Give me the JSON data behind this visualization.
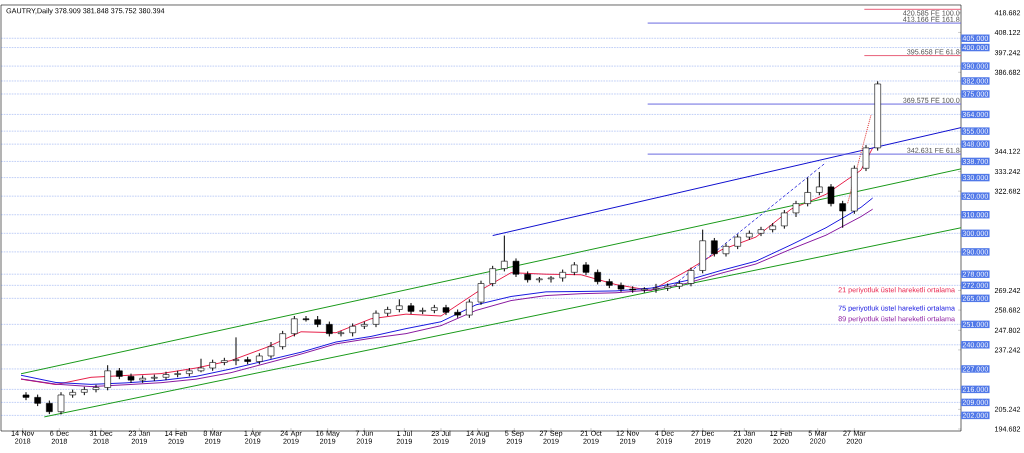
{
  "chart_data": {
    "type": "candlestick",
    "title": "GAUTRY,Daily 378.909 381.848 375.752 380.394",
    "x": [
      "2018-11-16",
      "2018-11-23",
      "2018-11-30",
      "2018-12-07",
      "2018-12-14",
      "2018-12-21",
      "2018-12-28",
      "2019-01-04",
      "2019-01-11",
      "2019-01-18",
      "2019-01-25",
      "2019-02-01",
      "2019-02-08",
      "2019-02-15",
      "2019-02-22",
      "2019-03-01",
      "2019-03-08",
      "2019-03-15",
      "2019-03-22",
      "2019-03-29",
      "2019-04-05",
      "2019-04-12",
      "2019-04-19",
      "2019-04-26",
      "2019-05-03",
      "2019-05-10",
      "2019-05-17",
      "2019-05-24",
      "2019-05-31",
      "2019-06-07",
      "2019-06-14",
      "2019-06-21",
      "2019-06-28",
      "2019-07-05",
      "2019-07-12",
      "2019-07-19",
      "2019-07-26",
      "2019-08-02",
      "2019-08-09",
      "2019-08-16",
      "2019-08-23",
      "2019-08-30",
      "2019-09-06",
      "2019-09-13",
      "2019-09-20",
      "2019-09-27",
      "2019-10-04",
      "2019-10-11",
      "2019-10-18",
      "2019-10-25",
      "2019-11-01",
      "2019-11-08",
      "2019-11-15",
      "2019-11-22",
      "2019-11-29",
      "2019-12-06",
      "2019-12-13",
      "2019-12-20",
      "2019-12-27",
      "2020-01-03",
      "2020-01-10",
      "2020-01-17",
      "2020-01-24",
      "2020-01-31",
      "2020-02-07",
      "2020-02-14",
      "2020-02-21",
      "2020-02-28",
      "2020-03-06",
      "2020-03-13",
      "2020-03-20",
      "2020-03-27",
      "2020-04-03",
      "2020-04-10"
    ],
    "ohlc": [
      [
        213,
        214.5,
        210.2,
        211.7
      ],
      [
        211.7,
        213.2,
        207,
        208.5
      ],
      [
        208.5,
        210,
        202.7,
        204
      ],
      [
        204,
        214.5,
        202.5,
        213
      ],
      [
        213,
        215.9,
        211.5,
        214.4
      ],
      [
        214.4,
        217.4,
        212.9,
        215.9
      ],
      [
        215.9,
        218.5,
        214.4,
        217
      ],
      [
        217,
        229,
        215.5,
        226
      ],
      [
        226,
        227.5,
        221.5,
        223
      ],
      [
        223,
        224.5,
        219.5,
        221
      ],
      [
        221,
        223.5,
        219.5,
        222
      ],
      [
        222,
        224,
        220.5,
        222.5
      ],
      [
        222.5,
        225.5,
        221,
        224
      ],
      [
        224,
        226,
        222.5,
        224.5
      ],
      [
        224.5,
        227.5,
        223,
        226
      ],
      [
        226,
        232.5,
        225.2,
        227.5
      ],
      [
        227.5,
        232,
        226,
        230.5
      ],
      [
        230.5,
        233,
        229,
        231.5
      ],
      [
        231.5,
        244,
        229,
        232
      ],
      [
        232,
        233.5,
        229.5,
        231
      ],
      [
        231,
        235.5,
        229.5,
        234
      ],
      [
        234,
        241.5,
        232.5,
        239
      ],
      [
        239,
        247.5,
        237.5,
        246
      ],
      [
        246,
        255.5,
        244.5,
        254
      ],
      [
        254,
        255.5,
        252.5,
        253.5
      ],
      [
        253.5,
        255.5,
        249.5,
        251
      ],
      [
        251,
        252.5,
        244.5,
        246
      ],
      [
        246,
        247.5,
        244.5,
        246.5
      ],
      [
        246.5,
        251.5,
        244.5,
        250
      ],
      [
        250,
        252.5,
        248.5,
        251
      ],
      [
        251,
        258.5,
        249.5,
        257
      ],
      [
        257,
        260.5,
        255.5,
        259
      ],
      [
        259,
        264.5,
        257.5,
        261
      ],
      [
        261,
        262.5,
        256.5,
        258
      ],
      [
        258,
        260,
        256.5,
        258.5
      ],
      [
        258.5,
        261.5,
        257,
        260
      ],
      [
        260,
        261.5,
        256,
        257.5
      ],
      [
        257.5,
        259,
        254.5,
        256
      ],
      [
        256,
        264.5,
        254.5,
        263
      ],
      [
        263,
        274.5,
        261.5,
        273
      ],
      [
        273,
        282.5,
        271.5,
        281
      ],
      [
        281,
        298.8,
        279.5,
        285
      ],
      [
        285,
        286.5,
        276.5,
        278
      ],
      [
        278,
        279.5,
        273.5,
        275
      ],
      [
        275,
        276.5,
        273.5,
        275.5
      ],
      [
        275.5,
        277,
        273.5,
        276
      ],
      [
        276,
        280.5,
        274,
        279
      ],
      [
        279,
        284.5,
        277.5,
        283
      ],
      [
        283,
        284.5,
        277.5,
        279
      ],
      [
        279,
        280.5,
        272.5,
        274
      ],
      [
        274,
        275.5,
        270.5,
        272
      ],
      [
        272,
        273.5,
        268.5,
        270
      ],
      [
        270,
        271.5,
        268,
        269.5
      ],
      [
        269.5,
        271,
        268,
        270
      ],
      [
        270,
        272.8,
        268,
        270.5
      ],
      [
        270.5,
        273,
        269,
        271.5
      ],
      [
        271.5,
        274.5,
        270,
        273
      ],
      [
        273,
        281.5,
        271.5,
        280
      ],
      [
        280,
        302,
        278.5,
        296
      ],
      [
        296,
        297.5,
        287.5,
        289
      ],
      [
        289,
        294.5,
        287.5,
        293
      ],
      [
        293,
        299.5,
        291.5,
        298
      ],
      [
        298,
        301.5,
        296.5,
        300
      ],
      [
        300,
        303.5,
        298.5,
        302
      ],
      [
        302,
        305.5,
        300.5,
        304
      ],
      [
        304,
        312.5,
        302.5,
        311
      ],
      [
        311,
        317.5,
        308.8,
        316
      ],
      [
        316,
        330,
        314.5,
        322
      ],
      [
        322,
        333,
        320.5,
        325
      ],
      [
        325,
        326.5,
        314.5,
        316
      ],
      [
        316,
        317.5,
        303,
        312
      ],
      [
        312,
        336.5,
        310.5,
        335
      ],
      [
        335,
        347.5,
        333.5,
        346
      ],
      [
        346,
        381.848,
        344.5,
        380.394
      ]
    ],
    "series": [
      {
        "type": "line",
        "name": "21 periyotluk üstel hareketli ortalama",
        "color": "#e8204a",
        "x": [
          "2018-11-13",
          "2018-12-04",
          "2018-12-25",
          "2019-01-15",
          "2019-02-05",
          "2019-02-26",
          "2019-03-19",
          "2019-04-09",
          "2019-04-30",
          "2019-05-21",
          "2019-06-11",
          "2019-07-02",
          "2019-07-23",
          "2019-08-13",
          "2019-09-03",
          "2019-09-24",
          "2019-10-15",
          "2019-11-05",
          "2019-11-26",
          "2019-12-17",
          "2020-01-07",
          "2020-01-28",
          "2020-02-18",
          "2020-03-10",
          "2020-03-31",
          "2020-04-07"
        ],
        "values": [
          221.5,
          218.6,
          222.5,
          223.5,
          224.5,
          227.5,
          231.5,
          238.5,
          247,
          246.5,
          254,
          256.5,
          255.5,
          268,
          278.8,
          278,
          277.7,
          272.4,
          269.2,
          279.5,
          291,
          298,
          313,
          321,
          334,
          346
        ]
      },
      {
        "type": "line",
        "name": "75 periyotluk üstel hareketli ortalama",
        "color": "#1a1ae0",
        "x": [
          "2018-11-13",
          "2018-12-04",
          "2018-12-25",
          "2019-01-15",
          "2019-02-05",
          "2019-02-26",
          "2019-03-19",
          "2019-04-09",
          "2019-04-30",
          "2019-05-21",
          "2019-06-11",
          "2019-07-02",
          "2019-07-23",
          "2019-08-13",
          "2019-09-03",
          "2019-09-24",
          "2019-10-15",
          "2019-11-05",
          "2019-11-26",
          "2019-12-17",
          "2020-01-07",
          "2020-01-28",
          "2020-02-18",
          "2020-03-10",
          "2020-03-31",
          "2020-04-07"
        ],
        "values": [
          223.6,
          219.7,
          218.7,
          219.5,
          220.8,
          223,
          227,
          231.5,
          236,
          241.5,
          244.5,
          248.7,
          252.4,
          261.5,
          266,
          268.5,
          268.7,
          269,
          270.5,
          274.5,
          280,
          285,
          293.8,
          303,
          314,
          319
        ]
      },
      {
        "type": "line",
        "name": "89 periyotluk üstel hareketli ortalama",
        "color": "#8a1aa0",
        "x": [
          "2018-11-13",
          "2018-12-04",
          "2018-12-25",
          "2019-01-15",
          "2019-02-05",
          "2019-02-26",
          "2019-03-19",
          "2019-04-09",
          "2019-04-30",
          "2019-05-21",
          "2019-06-11",
          "2019-07-02",
          "2019-07-23",
          "2019-08-13",
          "2019-09-03",
          "2019-09-24",
          "2019-10-15",
          "2019-11-05",
          "2019-11-26",
          "2019-12-17",
          "2020-01-07",
          "2020-01-28",
          "2020-02-18",
          "2020-03-10",
          "2020-03-31",
          "2020-04-07"
        ],
        "values": [
          221.6,
          218.8,
          217.5,
          218.5,
          219.6,
          221.5,
          225,
          230,
          235,
          240.5,
          243.5,
          246,
          250.3,
          258.5,
          263.8,
          266.5,
          267.5,
          268,
          269.5,
          273,
          278.5,
          283.5,
          291.5,
          299,
          309,
          313
        ]
      },
      {
        "type": "line",
        "color": "#1a9a1a",
        "x": [
          "2018-11-27",
          "2020-05-30"
        ],
        "values": [
          201.2,
          303.0
        ]
      },
      {
        "type": "line",
        "color": "#1a9a1a",
        "x": [
          "2018-11-13",
          "2020-05-30"
        ],
        "values": [
          224.4,
          334.7
        ]
      },
      {
        "type": "line",
        "color": "#1010d0",
        "x": [
          "2019-08-23",
          "2020-05-30"
        ],
        "values": [
          298.8,
          356.9
        ]
      },
      {
        "type": "line",
        "color": "#4040e0",
        "line_style": "dashed",
        "x": [
          "2019-12-10",
          "2020-03-09"
        ],
        "values": [
          272.4,
          337.4
        ]
      },
      {
        "type": "line",
        "color": "#e03030",
        "line_style": "dotted",
        "x": [
          "2020-03-23",
          "2020-04-06"
        ],
        "values": [
          316.2,
          363.7
        ]
      },
      {
        "type": "line",
        "color": "#e8607a",
        "x": [
          "2020-04-02",
          "2020-05-30"
        ],
        "values": [
          420.585,
          420.585
        ]
      },
      {
        "type": "line",
        "color": "#6a6ae0",
        "x": [
          "2019-11-24",
          "2020-05-30"
        ],
        "values": [
          413.166,
          413.166
        ]
      },
      {
        "type": "line",
        "color": "#e8607a",
        "x": [
          "2020-04-02",
          "2020-05-30"
        ],
        "values": [
          395.658,
          395.658
        ]
      },
      {
        "type": "line",
        "color": "#6a6ae0",
        "x": [
          "2019-11-24",
          "2020-05-30"
        ],
        "values": [
          369.575,
          369.575
        ]
      },
      {
        "type": "line",
        "color": "#6a6ae0",
        "x": [
          "2019-11-24",
          "2020-05-30"
        ],
        "values": [
          342.631,
          342.631
        ]
      }
    ],
    "annotations": [
      {
        "text": "420.585 FE 100.0",
        "x": "2020-05-30",
        "y": 420.585
      },
      {
        "text": "413.166 FE 161.8",
        "x": "2020-05-30",
        "y": 413.166
      },
      {
        "text": "395.658 FE 61.8",
        "x": "2020-05-30",
        "y": 395.658
      },
      {
        "text": "369.575 FE 100.0",
        "x": "2020-05-30",
        "y": 369.575
      },
      {
        "text": "342.631 FE 61.8",
        "x": "2020-05-30",
        "y": 342.631
      }
    ],
    "ref_lines": [
      {
        "axis": "y",
        "value": 405,
        "label": "405.000",
        "color": "#5078e8",
        "line_style": "dotted"
      },
      {
        "axis": "y",
        "value": 400,
        "label": "400.000",
        "color": "#5078e8",
        "line_style": "dotted"
      },
      {
        "axis": "y",
        "value": 390,
        "label": "390.000",
        "color": "#5078e8",
        "line_style": "dotted"
      },
      {
        "axis": "y",
        "value": 382,
        "label": "382.000",
        "color": "#5078e8",
        "line_style": "dotted"
      },
      {
        "axis": "y",
        "value": 375,
        "label": "375.000",
        "color": "#5078e8",
        "line_style": "dotted"
      },
      {
        "axis": "y",
        "value": 364,
        "label": "364.000",
        "color": "#5078e8",
        "line_style": "dotted"
      },
      {
        "axis": "y",
        "value": 355,
        "label": "355.000",
        "color": "#5078e8",
        "line_style": "dotted"
      },
      {
        "axis": "y",
        "value": 348,
        "label": "348.000",
        "color": "#5078e8",
        "line_style": "dotted"
      },
      {
        "axis": "y",
        "value": 338.7,
        "label": "338.700",
        "color": "#5078e8",
        "line_style": "dotted"
      },
      {
        "axis": "y",
        "value": 330,
        "label": "330.000",
        "color": "#5078e8",
        "line_style": "dotted"
      },
      {
        "axis": "y",
        "value": 320,
        "label": "320.000",
        "color": "#5078e8",
        "line_style": "dotted"
      },
      {
        "axis": "y",
        "value": 310,
        "label": "310.000",
        "color": "#5078e8",
        "line_style": "dotted"
      },
      {
        "axis": "y",
        "value": 300,
        "label": "300.000",
        "color": "#5078e8",
        "line_style": "dotted"
      },
      {
        "axis": "y",
        "value": 290,
        "label": "290.000",
        "color": "#5078e8",
        "line_style": "dotted"
      },
      {
        "axis": "y",
        "value": 278,
        "label": "278.000",
        "color": "#5078e8",
        "line_style": "dotted"
      },
      {
        "axis": "y",
        "value": 272,
        "label": "272.000",
        "color": "#5078e8",
        "line_style": "dotted"
      },
      {
        "axis": "y",
        "value": 265,
        "label": "265.000",
        "color": "#5078e8",
        "line_style": "dotted"
      },
      {
        "axis": "y",
        "value": 251,
        "label": "251.000",
        "color": "#5078e8",
        "line_style": "dotted"
      },
      {
        "axis": "y",
        "value": 240,
        "label": "240.000",
        "color": "#5078e8",
        "line_style": "dotted"
      },
      {
        "axis": "y",
        "value": 227,
        "label": "227.000",
        "color": "#5078e8",
        "line_style": "dotted"
      },
      {
        "axis": "y",
        "value": 216,
        "label": "216.000",
        "color": "#5078e8",
        "line_style": "dotted"
      },
      {
        "axis": "y",
        "value": 209,
        "label": "209.000",
        "color": "#5078e8",
        "line_style": "dotted"
      },
      {
        "axis": "y",
        "value": 202,
        "label": "202.000",
        "color": "#5078e8",
        "line_style": "dotted"
      }
    ],
    "xlim": [
      "2018-11-01",
      "2020-05-30"
    ],
    "xticks": [
      {
        "value": "2018-11-14",
        "label": "14 Nov 2018"
      },
      {
        "value": "2018-12-06",
        "label": "6 Dec 2018"
      },
      {
        "value": "2018-12-31",
        "label": "31 Dec 2018"
      },
      {
        "value": "2019-01-23",
        "label": "23 Jan 2019"
      },
      {
        "value": "2019-02-14",
        "label": "14 Feb 2019"
      },
      {
        "value": "2019-03-08",
        "label": "8 Mar 2019"
      },
      {
        "value": "2019-04-01",
        "label": "1 Apr 2019"
      },
      {
        "value": "2019-04-24",
        "label": "24 Apr 2019"
      },
      {
        "value": "2019-05-16",
        "label": "16 May 2019"
      },
      {
        "value": "2019-06-07",
        "label": "7 Jun 2019"
      },
      {
        "value": "2019-07-01",
        "label": "1 Jul 2019"
      },
      {
        "value": "2019-07-23",
        "label": "23 Jul 2019"
      },
      {
        "value": "2019-08-14",
        "label": "14 Aug 2019"
      },
      {
        "value": "2019-09-05",
        "label": "5 Sep 2019"
      },
      {
        "value": "2019-09-27",
        "label": "27 Sep 2019"
      },
      {
        "value": "2019-10-21",
        "label": "21 Oct 2019"
      },
      {
        "value": "2019-11-12",
        "label": "12 Nov 2019"
      },
      {
        "value": "2019-12-04",
        "label": "4 Dec 2019"
      },
      {
        "value": "2019-12-27",
        "label": "27 Dec 2019"
      },
      {
        "value": "2020-01-21",
        "label": "21 Jan 2020"
      },
      {
        "value": "2020-02-12",
        "label": "12 Feb 2020"
      },
      {
        "value": "2020-03-05",
        "label": "5 Mar 2020"
      },
      {
        "value": "2020-03-27",
        "label": "27 Mar 2020"
      }
    ],
    "ylim": [
      193.6,
      422.9
    ],
    "yticks": [
      418.682,
      408.122,
      397.242,
      386.682,
      344.122,
      333.242,
      322.682,
      269.242,
      258.682,
      247.802,
      237.242,
      205.242,
      194.682
    ]
  }
}
